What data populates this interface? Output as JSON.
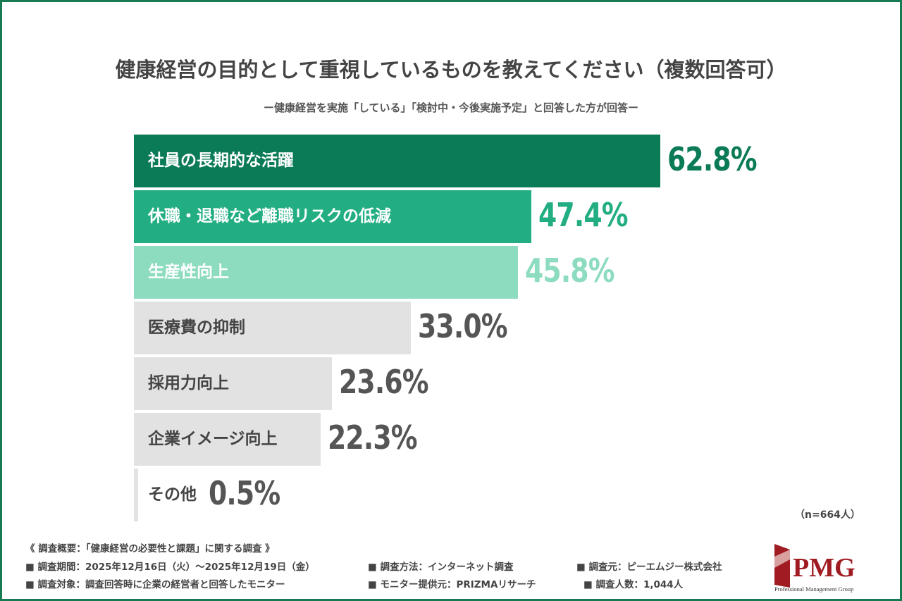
{
  "title": "健康経営の目的として重視しているものを教えてください（複数回答可）",
  "subtitle": "ー健康経営を実施「している」「検討中・今後実施予定」と回答した方が回答ー",
  "sample_note": "（n=664人）",
  "chart_data": {
    "type": "bar",
    "orientation": "horizontal",
    "categories": [
      "社員の長期的な活躍",
      "休職・退職など離職リスクの低減",
      "生産性向上",
      "医療費の抑制",
      "採用力向上",
      "企業イメージ向上",
      "その他"
    ],
    "values": [
      62.8,
      47.4,
      45.8,
      33.0,
      23.6,
      22.3,
      0.5
    ],
    "value_labels": [
      "62.8%",
      "47.4%",
      "45.8%",
      "33.0%",
      "23.6%",
      "22.3%",
      "0.5%"
    ],
    "unit": "%",
    "bar_colors": [
      "#0b7a57",
      "#22ae82",
      "#8ddcbf",
      "#e2e2e2",
      "#e2e2e2",
      "#e2e2e2",
      "#e2e2e2"
    ],
    "label_colors": [
      "#ffffff",
      "#ffffff",
      "#ffffff",
      "#444444",
      "#444444",
      "#444444",
      "#444444"
    ],
    "value_colors": [
      "#0b7a57",
      "#22ae82",
      "#8ddcbf",
      "#555555",
      "#555555",
      "#555555",
      "#555555"
    ],
    "grid": false
  },
  "footer": {
    "heading": "《 調査概要：「健康経営の必要性と課題」に関する調査 》",
    "items": [
      "■ 調査期間：2025年12月16日（火）～2025年12月19日（金）",
      "■ 調査方法：インターネット調査",
      "■ 調査元：ピーエムジー株式会社",
      "■ 調査対象：調査回答時に企業の経営者と回答したモニター",
      "■ モニター提供元：PRIZMAリサーチ",
      "■ 調査人数：1,044人"
    ]
  },
  "logo": {
    "text": "PMG",
    "tagline": "Professional Management Group",
    "color": "#a01c22"
  },
  "frame_color": "#167a52"
}
